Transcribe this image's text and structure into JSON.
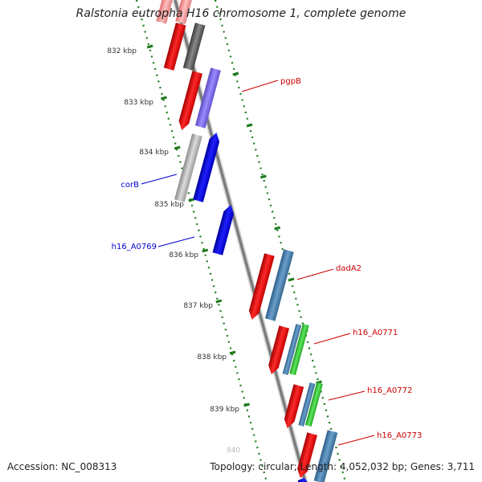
{
  "title": "Ralstonia eutropha H16 chromosome 1, complete genome",
  "footer": {
    "accession": "Accession: NC_008313",
    "topology": "Topology: circular; Length: 4,052,032 bp; Genes: 3,711"
  },
  "scale": {
    "ticks": [
      "832 kbp",
      "833 kbp",
      "834 kbp",
      "835 kbp",
      "836 kbp",
      "837 kbp",
      "838 kbp",
      "839 kbp"
    ]
  },
  "gene_labels": {
    "pgpB": "pgpB",
    "corB": "corB",
    "h16_A0769": "h16_A0769",
    "dadA2": "dadA2",
    "h16_A0771": "h16_A0771",
    "h16_A0772": "h16_A0772",
    "h16_A0773": "h16_A0773"
  },
  "colors": {
    "forward_cds": "#ff0000",
    "reverse_cds": "#0000ff",
    "backbone": "#8c8c8c",
    "tick_green": "#1e7a1e",
    "cog_blue": "#4682b4",
    "cog_green": "#32cd32",
    "cog_purple": "#7b68ee",
    "cog_grey": "#a0a0a0",
    "cog_dark": "#555555",
    "label_red": "#cc0000",
    "label_blue": "#0000cc"
  }
}
